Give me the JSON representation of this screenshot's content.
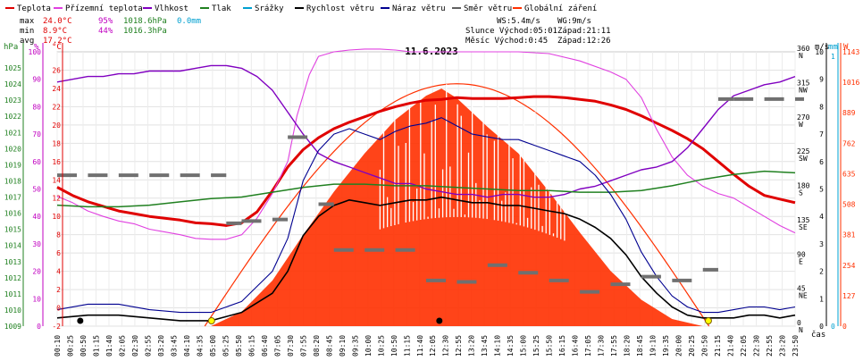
{
  "legend": [
    {
      "label": "Teplota",
      "color": "#e00000"
    },
    {
      "label": "Přízemní teplota",
      "color": "#e040e0"
    },
    {
      "label": "Vlhkost",
      "color": "#8000c0"
    },
    {
      "label": "Tlak",
      "color": "#208020"
    },
    {
      "label": "Srážky",
      "color": "#00a0d0"
    },
    {
      "label": "Rychlost větru",
      "color": "#000000"
    },
    {
      "label": "Náraz větru",
      "color": "#000090"
    },
    {
      "label": "Směr větru",
      "color": "#606060"
    },
    {
      "label": "Globální záření",
      "color": "#ff3000"
    }
  ],
  "stats": {
    "max": {
      "label": "max",
      "temp": "24.0°C",
      "hum": "95%",
      "press": "1018.6hPa",
      "rain": "0.0mm"
    },
    "min": {
      "label": "min",
      "temp": "8.9°C",
      "hum": "44%",
      "press": "1016.3hPa"
    },
    "avg": {
      "label": "avg",
      "temp": "17.2°C"
    }
  },
  "info": {
    "ws": "WS:5.4m/s",
    "wg": "WG:9m/s",
    "sun": "Slunce Východ:05:01",
    "sun_set": "Západ:21:11",
    "moon": "Měsíc Východ:0:45",
    "moon_set": "Západ:12:26"
  },
  "chart_data": {
    "type": "line",
    "title": "11.6.2023",
    "xlabel": "čas",
    "x_ticks": [
      "00:10",
      "00:25",
      "00:50",
      "01:15",
      "01:40",
      "02:05",
      "02:30",
      "02:55",
      "03:20",
      "03:45",
      "04:10",
      "04:35",
      "05:00",
      "05:25",
      "05:50",
      "06:15",
      "06:40",
      "07:05",
      "07:30",
      "07:55",
      "08:20",
      "08:45",
      "09:10",
      "09:35",
      "10:00",
      "10:25",
      "10:50",
      "11:15",
      "11:40",
      "12:05",
      "12:30",
      "12:55",
      "13:20",
      "13:45",
      "14:10",
      "14:35",
      "15:00",
      "15:25",
      "15:50",
      "16:15",
      "16:40",
      "17:05",
      "17:30",
      "17:55",
      "18:20",
      "18:45",
      "19:10",
      "19:35",
      "20:00",
      "20:25",
      "20:50",
      "21:15",
      "21:40",
      "22:05",
      "22:30",
      "22:55",
      "23:20",
      "23:50"
    ],
    "axes": {
      "pressure": {
        "label": "hPa",
        "range": [
          1009,
          1026
        ],
        "ticks": [
          "1009",
          "1010",
          "1011",
          "1012",
          "1013",
          "1014",
          "1015",
          "1016",
          "1017",
          "1018",
          "1019",
          "1020",
          "1021",
          "1022",
          "1023",
          "1024",
          "1025"
        ],
        "color": "#208020"
      },
      "humidity": {
        "label": "%",
        "range": [
          0,
          100
        ],
        "ticks": [
          "0",
          "10",
          "20",
          "30",
          "40",
          "50",
          "60",
          "70",
          "80",
          "90",
          "100"
        ],
        "color": "#c000c0"
      },
      "temperature": {
        "label": "°C",
        "range": [
          -2,
          28
        ],
        "ticks": [
          "-2",
          "0",
          "2",
          "4",
          "6",
          "8",
          "10",
          "12",
          "14",
          "16",
          "18",
          "20",
          "22",
          "24",
          "26"
        ],
        "color": "#e00000"
      },
      "wind_direction": {
        "range": [
          0,
          360
        ],
        "ticks": [
          "0",
          "45",
          "90",
          "135",
          "180",
          "225",
          "270",
          "315",
          "360"
        ],
        "labels": [
          "N",
          "NE",
          "E",
          "SE",
          "S",
          "SW",
          "W",
          "NW",
          "N"
        ]
      },
      "wind_speed": {
        "label": "m/s",
        "range": [
          0,
          10
        ],
        "ticks": [
          "0",
          "1",
          "2",
          "3",
          "4",
          "5",
          "6",
          "7",
          "8",
          "9",
          "10"
        ]
      },
      "rain": {
        "label": "mm",
        "range": [
          0,
          1
        ],
        "ticks": [
          "0",
          "1"
        ],
        "color": "#00a0d0"
      },
      "radiation": {
        "label": "W",
        "range": [
          0,
          1143
        ],
        "ticks": [
          "0",
          "127",
          "254",
          "381",
          "508",
          "635",
          "762",
          "889",
          "1016",
          "1143"
        ],
        "color": "#ff3000"
      }
    },
    "series": [
      {
        "name": "Teplota",
        "axis": "temperature",
        "color": "#e00000",
        "x": [
          0,
          0.5,
          1,
          1.5,
          2,
          2.5,
          3,
          3.5,
          4,
          4.5,
          5,
          5.5,
          6,
          6.5,
          7,
          7.5,
          8,
          8.5,
          9,
          9.5,
          10,
          10.5,
          11,
          11.5,
          12,
          12.5,
          13,
          13.5,
          14,
          14.5,
          15,
          15.5,
          16,
          16.5,
          17,
          17.5,
          18,
          18.5,
          19,
          19.5,
          20,
          20.5,
          21,
          21.5,
          22,
          22.5,
          23,
          23.5,
          24
        ],
        "y": [
          13.2,
          12.3,
          11.6,
          11.1,
          10.6,
          10.3,
          10.0,
          9.8,
          9.6,
          9.3,
          9.2,
          9.0,
          9.3,
          10.5,
          12.8,
          15.4,
          17.3,
          18.6,
          19.6,
          20.3,
          20.9,
          21.5,
          22.0,
          22.4,
          22.7,
          22.8,
          23.0,
          22.9,
          22.9,
          22.9,
          23.0,
          23.1,
          23.1,
          23.0,
          22.8,
          22.6,
          22.2,
          21.7,
          21.0,
          20.2,
          19.4,
          18.5,
          17.4,
          16.0,
          14.6,
          13.3,
          12.3,
          11.9,
          11.5
        ]
      },
      {
        "name": "Přízemní teplota",
        "axis": "temperature",
        "color": "#e040e0",
        "x": [
          0,
          0.5,
          1,
          1.5,
          2,
          2.5,
          3,
          3.5,
          4,
          4.5,
          5,
          5.5,
          6,
          6.5,
          7,
          7.5,
          7.8,
          8.2,
          8.5,
          9,
          9.5,
          10,
          10.5,
          11,
          11.5,
          12,
          13,
          14,
          15,
          16,
          17,
          18,
          18.5,
          19,
          19.5,
          20,
          20.5,
          21,
          21.5,
          22,
          22.5,
          23,
          23.5,
          24
        ],
        "y": [
          12.2,
          11.5,
          10.6,
          10.0,
          9.5,
          9.2,
          8.6,
          8.3,
          8.0,
          7.6,
          7.5,
          7.5,
          8.0,
          9.8,
          12.5,
          16.0,
          21.0,
          25.5,
          27.5,
          28.0,
          28.2,
          28.3,
          28.3,
          28.2,
          28.0,
          28.0,
          28.0,
          28.0,
          28.0,
          27.8,
          27.0,
          25.8,
          25.0,
          23.0,
          19.5,
          16.5,
          14.5,
          13.3,
          12.5,
          12.0,
          11.0,
          10.0,
          9.0,
          8.2
        ]
      },
      {
        "name": "Vlhkost",
        "axis": "humidity",
        "color": "#8000c0",
        "x": [
          0,
          0.5,
          1,
          1.5,
          2,
          2.5,
          3,
          3.5,
          4,
          4.5,
          5,
          5.5,
          6,
          6.5,
          7,
          7.5,
          8,
          8.5,
          9,
          9.5,
          10,
          10.5,
          11,
          11.5,
          12,
          12.5,
          13,
          13.5,
          14,
          14.5,
          15,
          15.5,
          16,
          16.5,
          17,
          17.5,
          18,
          18.5,
          19,
          19.5,
          20,
          20.5,
          21,
          21.5,
          22,
          22.5,
          23,
          23.5,
          24
        ],
        "y": [
          89,
          90,
          91,
          91,
          92,
          92,
          93,
          93,
          93,
          94,
          95,
          95,
          94,
          91,
          86,
          78,
          70,
          63,
          60,
          58,
          56,
          54,
          52,
          52,
          50,
          49,
          48,
          48,
          47,
          48,
          48,
          47,
          47,
          48,
          50,
          51,
          53,
          55,
          57,
          58,
          60,
          65,
          72,
          79,
          84,
          86,
          88,
          89,
          91
        ]
      },
      {
        "name": "Tlak",
        "axis": "pressure",
        "color": "#208020",
        "x": [
          0,
          1,
          2,
          3,
          4,
          5,
          6,
          7,
          8,
          9,
          10,
          11,
          12,
          13,
          14,
          15,
          16,
          17,
          18,
          19,
          20,
          21,
          22,
          23,
          24
        ],
        "y": [
          1016.5,
          1016.4,
          1016.4,
          1016.5,
          1016.7,
          1016.9,
          1017.0,
          1017.3,
          1017.6,
          1017.8,
          1017.8,
          1017.7,
          1017.7,
          1017.6,
          1017.5,
          1017.4,
          1017.4,
          1017.3,
          1017.3,
          1017.4,
          1017.7,
          1018.1,
          1018.4,
          1018.6,
          1018.5
        ]
      },
      {
        "name": "Rychlost větru",
        "axis": "wind_speed",
        "color": "#000000",
        "x": [
          0,
          1,
          2,
          3,
          4,
          5,
          6,
          7,
          7.5,
          8,
          8.5,
          9,
          9.5,
          10,
          10.5,
          11,
          11.5,
          12,
          12.5,
          13,
          13.5,
          14,
          14.5,
          15,
          15.5,
          16,
          16.5,
          17,
          17.5,
          18,
          18.5,
          19,
          19.5,
          20,
          20.5,
          21,
          21.5,
          22,
          22.5,
          23,
          23.5,
          24
        ],
        "y": [
          0.3,
          0.4,
          0.4,
          0.3,
          0.2,
          0.2,
          0.5,
          1.2,
          2.0,
          3.3,
          4.0,
          4.4,
          4.6,
          4.5,
          4.4,
          4.5,
          4.6,
          4.6,
          4.7,
          4.6,
          4.5,
          4.5,
          4.4,
          4.4,
          4.3,
          4.2,
          4.1,
          3.9,
          3.6,
          3.2,
          2.6,
          1.8,
          1.2,
          0.7,
          0.4,
          0.3,
          0.3,
          0.3,
          0.4,
          0.4,
          0.3,
          0.4
        ]
      },
      {
        "name": "Náraz větru",
        "axis": "wind_speed",
        "color": "#000090",
        "x": [
          0,
          1,
          2,
          3,
          4,
          5,
          6,
          7,
          7.5,
          8,
          8.5,
          9,
          9.5,
          10,
          10.5,
          11,
          11.5,
          12,
          12.5,
          13,
          13.5,
          14,
          14.5,
          15,
          15.5,
          16,
          16.5,
          17,
          17.5,
          18,
          18.5,
          19,
          19.5,
          20,
          20.5,
          21,
          21.5,
          22,
          22.5,
          23,
          23.5,
          24
        ],
        "y": [
          0.6,
          0.8,
          0.8,
          0.6,
          0.5,
          0.5,
          0.9,
          2.0,
          3.2,
          5.3,
          6.4,
          7.0,
          7.2,
          7.0,
          6.8,
          7.1,
          7.3,
          7.4,
          7.6,
          7.3,
          7.0,
          6.9,
          6.8,
          6.8,
          6.6,
          6.4,
          6.2,
          6.0,
          5.5,
          4.8,
          3.9,
          2.7,
          1.8,
          1.1,
          0.7,
          0.5,
          0.5,
          0.6,
          0.7,
          0.7,
          0.6,
          0.7
        ]
      },
      {
        "name": "Globální záření",
        "axis": "radiation",
        "color": "#ff3000",
        "x": [
          5,
          6,
          7,
          8,
          9,
          10,
          11,
          12,
          12.5,
          13,
          14,
          15,
          16,
          17,
          18,
          19,
          20,
          21
        ],
        "y": [
          0,
          60,
          190,
          380,
          560,
          720,
          860,
          960,
          990,
          950,
          830,
          720,
          560,
          390,
          230,
          110,
          30,
          0
        ]
      },
      {
        "name": "Směr větru",
        "axis": "wind_direction",
        "color": "#606060",
        "x": [
          0,
          1,
          2,
          3,
          4,
          5,
          5.5,
          6,
          7,
          7.5,
          8.5,
          9,
          10,
          11,
          12,
          13,
          14,
          15,
          16,
          17,
          18,
          19,
          20,
          21,
          21.5,
          22,
          23,
          24
        ],
        "y": [
          198,
          198,
          198,
          198,
          198,
          198,
          135,
          138,
          140,
          248,
          160,
          100,
          100,
          100,
          60,
          58,
          80,
          70,
          60,
          45,
          55,
          65,
          60,
          74,
          298,
          298,
          298,
          298
        ]
      }
    ]
  }
}
